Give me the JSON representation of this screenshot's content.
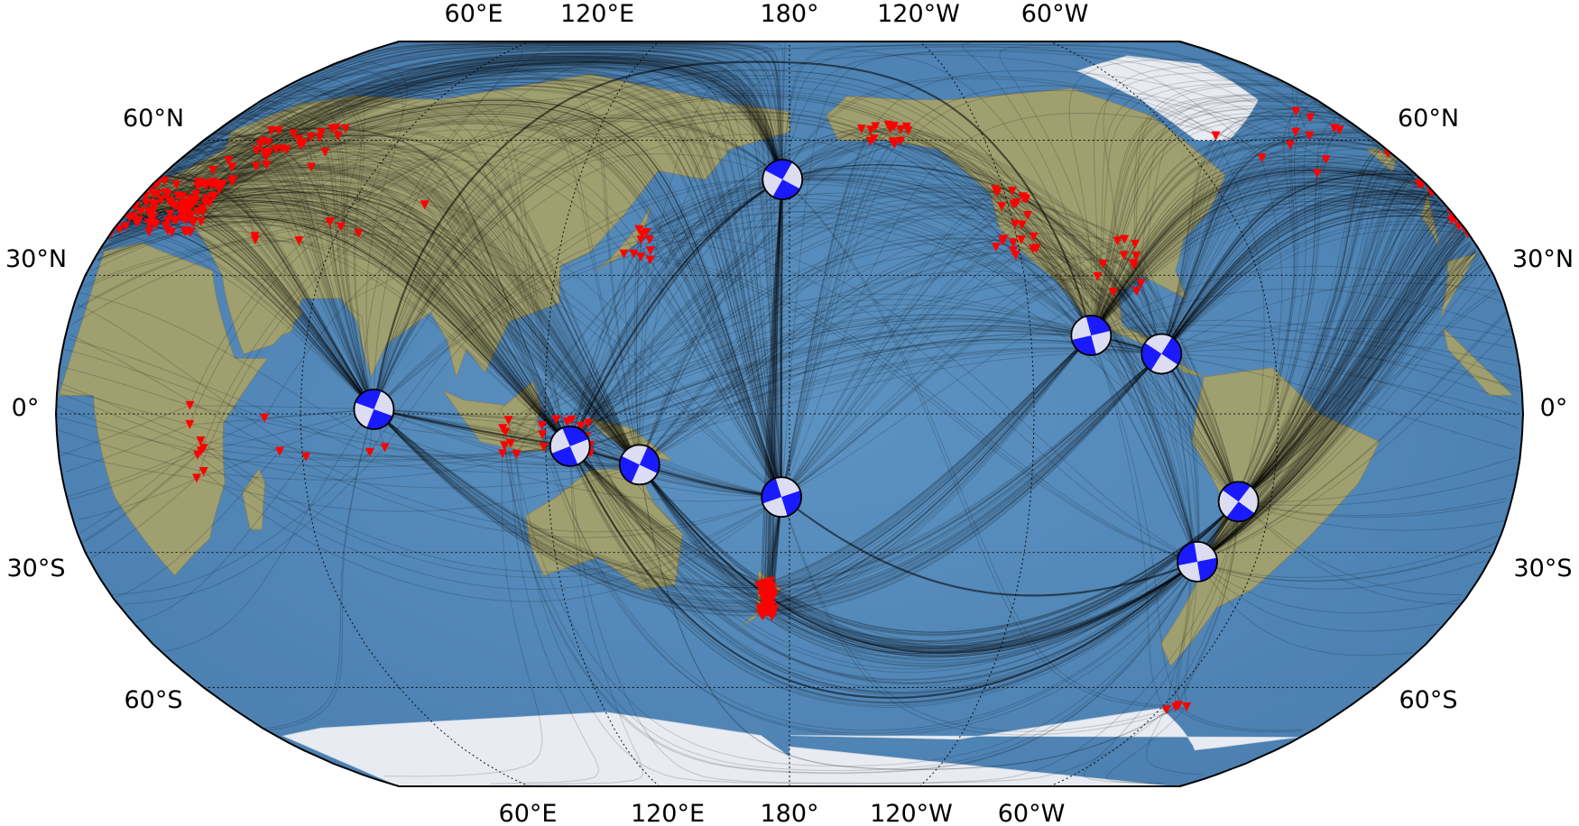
{
  "map": {
    "projection": "robinson",
    "central_longitude": 180,
    "colors": {
      "ocean": "#4f86b8",
      "land": "#b8a27c",
      "vegetation": "#6f9a5c",
      "ice": "#e8ecf2",
      "station": "#ff0000",
      "beachball_fill": "#1a1aff",
      "beachball_bg": "#dcdcf3",
      "ray": "#000000"
    },
    "lon_ticks_top": [
      "60°E",
      "120°E",
      "180°",
      "120°W",
      "60°W"
    ],
    "lon_ticks_bottom": [
      "60°E",
      "120°E",
      "180°",
      "120°W",
      "60°W"
    ],
    "lat_ticks_left": [
      "60°N",
      "30°N",
      "0°",
      "30°S",
      "60°S"
    ],
    "lat_ticks_right": [
      "60°N",
      "30°N",
      "0°",
      "30°S",
      "60°S"
    ],
    "events": [
      {
        "lon": 78,
        "lat": 1
      },
      {
        "lon": 126,
        "lat": -7
      },
      {
        "lon": 143,
        "lat": -11
      },
      {
        "lon": 178,
        "lat": -18
      },
      {
        "lon": 178,
        "lat": 51
      },
      {
        "lon": -105,
        "lat": 17
      },
      {
        "lon": -88,
        "lat": 13
      },
      {
        "lon": -75,
        "lat": -32
      },
      {
        "lon": -68,
        "lat": -19
      }
    ],
    "station_markers": "red inverted triangles"
  }
}
